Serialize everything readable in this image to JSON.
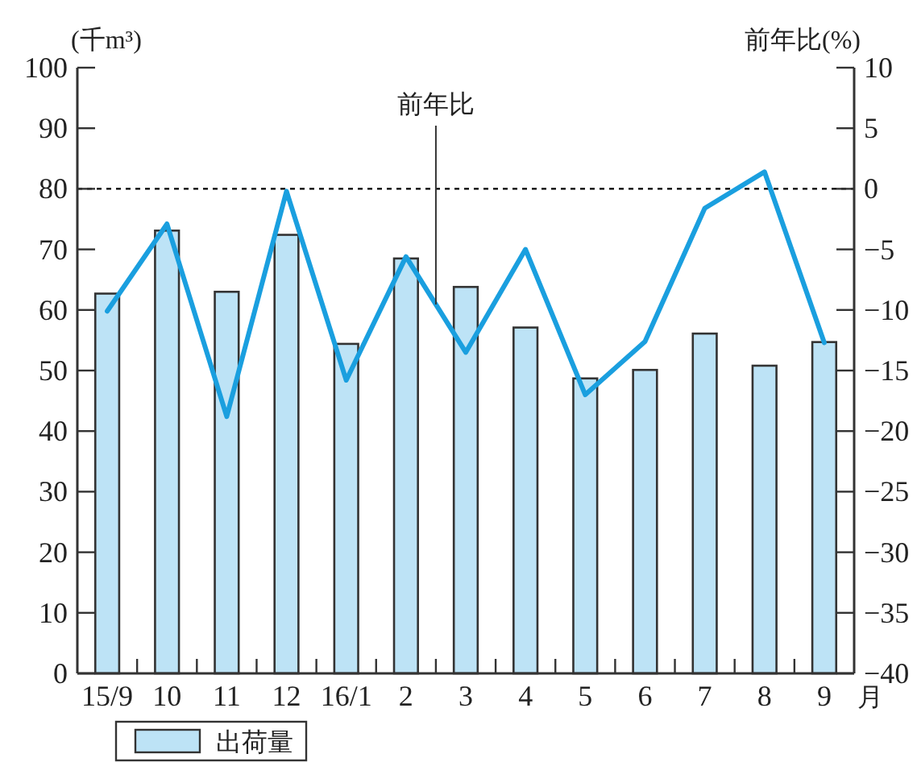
{
  "chart_data": {
    "type": "bar",
    "categories": [
      "15/9",
      "10",
      "11",
      "12",
      "16/1",
      "2",
      "3",
      "4",
      "5",
      "6",
      "7",
      "8",
      "9"
    ],
    "xlabel": "月",
    "ylabel": "(千m³)",
    "y2label": "前年比(%)",
    "ylim": [
      0,
      100
    ],
    "yticks": [
      0,
      10,
      20,
      30,
      40,
      50,
      60,
      70,
      80,
      90,
      100
    ],
    "y2lim": [
      -40,
      10
    ],
    "y2ticks": [
      -40,
      -35,
      -30,
      -25,
      -20,
      -15,
      -10,
      -5,
      0,
      5,
      10
    ],
    "series": [
      {
        "name": "出荷量",
        "color": "#bde3f6",
        "values": [
          62.7,
          73.1,
          63.0,
          72.4,
          54.4,
          68.5,
          63.8,
          57.1,
          48.7,
          50.1,
          56.1,
          50.8,
          54.7
        ]
      },
      {
        "name": "前年比",
        "type": "line",
        "axis": "y2",
        "color": "#1a9fdf",
        "values": [
          -10.1,
          -2.9,
          -18.8,
          -0.2,
          -15.8,
          -5.6,
          -13.5,
          -5.0,
          -17.0,
          -12.6,
          -1.6,
          1.4,
          -12.7
        ]
      }
    ],
    "ref_lines": [
      {
        "axis": "y2",
        "value": 0,
        "color": "#000000",
        "line_style": "dashed"
      }
    ],
    "legend": "bottom"
  }
}
